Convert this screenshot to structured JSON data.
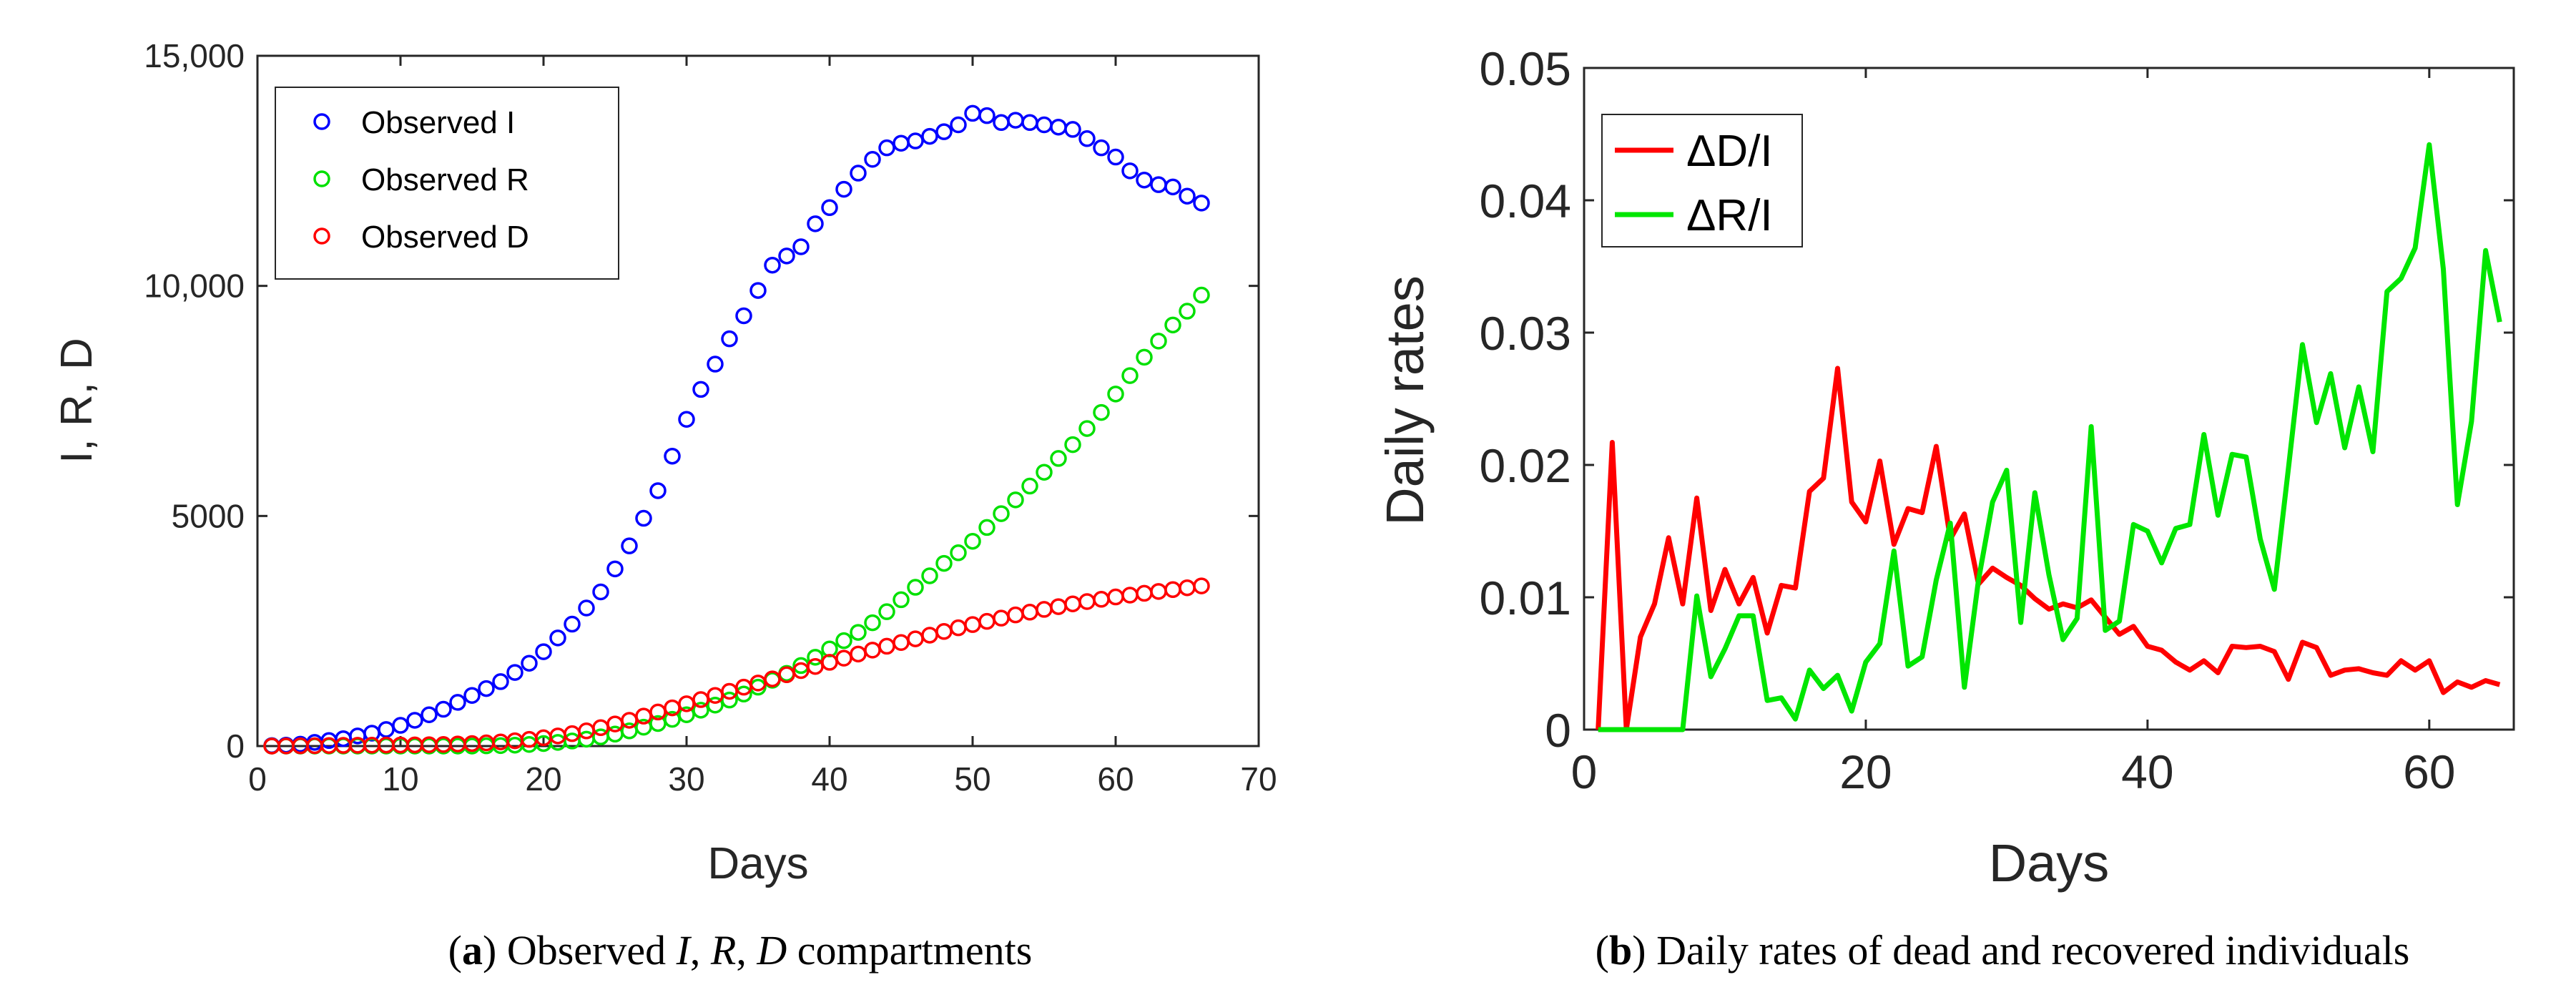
{
  "panels": [
    {
      "caption": {
        "tag": "a",
        "parts": [
          ") Observed ",
          "I",
          ", ",
          "R",
          ", ",
          "D",
          " compartments"
        ]
      },
      "chart_data": {
        "type": "scatter",
        "xlabel": "Days",
        "ylabel": "I, R, D",
        "xlim": [
          0,
          70
        ],
        "ylim": [
          0,
          15000
        ],
        "xticks": [
          "0",
          "10",
          "20",
          "30",
          "40",
          "50",
          "60",
          "70"
        ],
        "yticks": [
          "0",
          "5000",
          "10,000",
          "15,000"
        ],
        "legend_position": "top-left",
        "grid": false,
        "x": [
          1,
          2,
          3,
          4,
          5,
          6,
          7,
          8,
          9,
          10,
          11,
          12,
          13,
          14,
          15,
          16,
          17,
          18,
          19,
          20,
          21,
          22,
          23,
          24,
          25,
          26,
          27,
          28,
          29,
          30,
          31,
          32,
          33,
          34,
          35,
          36,
          37,
          38,
          39,
          40,
          41,
          42,
          43,
          44,
          45,
          46,
          47,
          48,
          49,
          50,
          51,
          52,
          53,
          54,
          55,
          56,
          57,
          58,
          59,
          60,
          61,
          62,
          63,
          64,
          65,
          66
        ],
        "series": [
          {
            "name": "Observed I",
            "color": "#0000ff",
            "values": [
              10,
              20,
              40,
              80,
              120,
              160,
              220,
              280,
              360,
              450,
              560,
              680,
              800,
              950,
              1100,
              1250,
              1400,
              1600,
              1800,
              2050,
              2350,
              2650,
              3000,
              3350,
              3850,
              4350,
              4950,
              5550,
              6300,
              7100,
              7750,
              8300,
              8850,
              9350,
              9900,
              10450,
              10650,
              10850,
              11350,
              11700,
              12100,
              12450,
              12750,
              13000,
              13100,
              13150,
              13250,
              13350,
              13500,
              13750,
              13700,
              13550,
              13600,
              13550,
              13500,
              13450,
              13400,
              13200,
              13000,
              12800,
              12500,
              12300,
              12200,
              12150,
              11950,
              11800
            ]
          },
          {
            "name": "Observed R",
            "color": "#00e000",
            "values": [
              0,
              0,
              0,
              0,
              0,
              0,
              0,
              0,
              0,
              0,
              0,
              0,
              0,
              0,
              0,
              5,
              10,
              20,
              35,
              55,
              80,
              110,
              150,
              200,
              260,
              330,
              410,
              490,
              580,
              680,
              780,
              890,
              1000,
              1130,
              1280,
              1430,
              1580,
              1750,
              1930,
              2110,
              2290,
              2470,
              2680,
              2920,
              3180,
              3450,
              3700,
              3970,
              4200,
              4450,
              4750,
              5050,
              5350,
              5650,
              5950,
              6250,
              6550,
              6900,
              7250,
              7650,
              8050,
              8450,
              8800,
              9150,
              9450,
              9800
            ]
          },
          {
            "name": "Observed D",
            "color": "#ff0000",
            "values": [
              0,
              2,
              5,
              8,
              12,
              15,
              18,
              20,
              22,
              24,
              26,
              30,
              35,
              45,
              55,
              70,
              90,
              115,
              145,
              180,
              220,
              270,
              330,
              400,
              480,
              560,
              650,
              740,
              830,
              920,
              1010,
              1100,
              1190,
              1280,
              1370,
              1460,
              1550,
              1640,
              1730,
              1820,
              1910,
              2000,
              2085,
              2170,
              2250,
              2330,
              2410,
              2490,
              2570,
              2640,
              2710,
              2780,
              2850,
              2910,
              2970,
              3030,
              3090,
              3140,
              3190,
              3240,
              3280,
              3320,
              3360,
              3400,
              3440,
              3480
            ]
          }
        ]
      }
    },
    {
      "caption": {
        "tag": "b",
        "parts": [
          ") Daily rates of dead and recovered individuals"
        ]
      },
      "chart_data": {
        "type": "line",
        "xlabel": "Days",
        "ylabel": "Daily rates",
        "xlim": [
          0,
          66
        ],
        "ylim": [
          0,
          0.05
        ],
        "xticks": [
          "0",
          "20",
          "40",
          "60"
        ],
        "yticks": [
          "0",
          "0.01",
          "0.02",
          "0.03",
          "0.04",
          "0.05"
        ],
        "legend_position": "top-left",
        "grid": false,
        "x": [
          1,
          2,
          3,
          4,
          5,
          6,
          7,
          8,
          9,
          10,
          11,
          12,
          13,
          14,
          15,
          16,
          17,
          18,
          19,
          20,
          21,
          22,
          23,
          24,
          25,
          26,
          27,
          28,
          29,
          30,
          31,
          32,
          33,
          34,
          35,
          36,
          37,
          38,
          39,
          40,
          41,
          42,
          43,
          44,
          45,
          46,
          47,
          48,
          49,
          50,
          51,
          52,
          53,
          54,
          55,
          56,
          57,
          58,
          59,
          60,
          61,
          62,
          63,
          64,
          65
        ],
        "series": [
          {
            "name": "ΔD/I",
            "color": "#ff0000",
            "values": [
              0,
              0.0217,
              0,
              0.007,
              0.0095,
              0.0145,
              0.0095,
              0.0175,
              0.009,
              0.0121,
              0.0095,
              0.0115,
              0.0073,
              0.0109,
              0.0107,
              0.018,
              0.019,
              0.0273,
              0.0172,
              0.0157,
              0.0203,
              0.014,
              0.0167,
              0.0164,
              0.0214,
              0.0144,
              0.0163,
              0.011,
              0.0122,
              0.0115,
              0.0109,
              0.0099,
              0.0091,
              0.0095,
              0.0092,
              0.0098,
              0.0085,
              0.0072,
              0.0078,
              0.0063,
              0.006,
              0.0051,
              0.0045,
              0.0052,
              0.0043,
              0.0063,
              0.0062,
              0.0063,
              0.0059,
              0.0038,
              0.0066,
              0.0062,
              0.0041,
              0.0045,
              0.0046,
              0.0043,
              0.0041,
              0.0052,
              0.0045,
              0.0052,
              0.0028,
              0.0036,
              0.0032,
              0.0037,
              0.0034
            ]
          },
          {
            "name": "ΔR/I",
            "color": "#00e600",
            "values": [
              0,
              0,
              0,
              0,
              0,
              0,
              0,
              0.0101,
              0.004,
              0.0061,
              0.0086,
              0.0086,
              0.0022,
              0.0024,
              0.0008,
              0.0045,
              0.0031,
              0.0041,
              0.0014,
              0.0051,
              0.0065,
              0.0135,
              0.0048,
              0.0055,
              0.0113,
              0.0156,
              0.0032,
              0.0113,
              0.0172,
              0.0196,
              0.0081,
              0.0179,
              0.0117,
              0.0068,
              0.0084,
              0.0229,
              0.0075,
              0.0082,
              0.0155,
              0.015,
              0.0126,
              0.0152,
              0.0155,
              0.0223,
              0.0162,
              0.0208,
              0.0206,
              0.0144,
              0.0106,
              0.0197,
              0.0291,
              0.0232,
              0.0269,
              0.0213,
              0.0259,
              0.021,
              0.0331,
              0.0341,
              0.0364,
              0.0442,
              0.0348,
              0.017,
              0.0233,
              0.0362,
              0.0308
            ]
          }
        ]
      }
    }
  ]
}
